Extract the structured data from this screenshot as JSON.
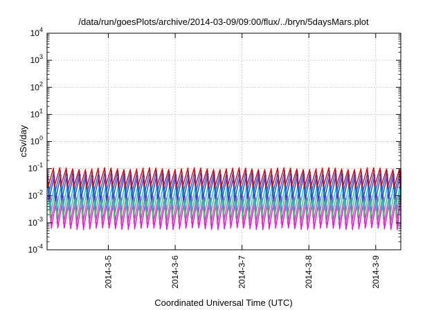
{
  "chart_data": {
    "type": "line",
    "title": "/data/run/goesPlots/archive/2014-03-09/09:00/flux/../bryn/5daysMars.plot",
    "xlabel": "Coordinated Universal Time (UTC)",
    "ylabel": "cSv/day",
    "y_scale": "log",
    "ylim": [
      0.0001,
      10000
    ],
    "xlim": [
      "2014-03-04 02:00",
      "2014-03-09 09:00"
    ],
    "x_ticks": [
      "2014-3-5",
      "2014-3-6",
      "2014-3-7",
      "2014-3-8",
      "2014-3-9"
    ],
    "y_ticks": [
      {
        "base": "10",
        "exp": "-4"
      },
      {
        "base": "10",
        "exp": "-3"
      },
      {
        "base": "10",
        "exp": "-2"
      },
      {
        "base": "10",
        "exp": "-1"
      },
      {
        "base": "10",
        "exp": "0"
      },
      {
        "base": "10",
        "exp": "1"
      },
      {
        "base": "10",
        "exp": "2"
      },
      {
        "base": "10",
        "exp": "3"
      },
      {
        "base": "10",
        "exp": "4"
      }
    ],
    "grid": true,
    "pattern": "sawtooth",
    "cycle_hours": 2.3,
    "series": [
      {
        "color": "#ff00ff",
        "peak": 0.009,
        "trough": 0.0006,
        "phase": 0.55
      },
      {
        "color": "#cc44aa",
        "peak": 0.012,
        "trough": 0.0009,
        "phase": 0.45
      },
      {
        "color": "#33cc66",
        "peak": 0.02,
        "trough": 0.0015,
        "phase": 0.35
      },
      {
        "color": "#00cccc",
        "peak": 0.03,
        "trough": 0.003,
        "phase": 0.25
      },
      {
        "color": "#3333ff",
        "peak": 0.06,
        "trough": 0.007,
        "phase": 0.15
      },
      {
        "color": "#1f5fd0",
        "peak": 0.08,
        "trough": 0.012,
        "phase": 0.08
      },
      {
        "color": "#dd0000",
        "peak": 0.1,
        "trough": 0.02,
        "phase": 0.0
      }
    ]
  }
}
